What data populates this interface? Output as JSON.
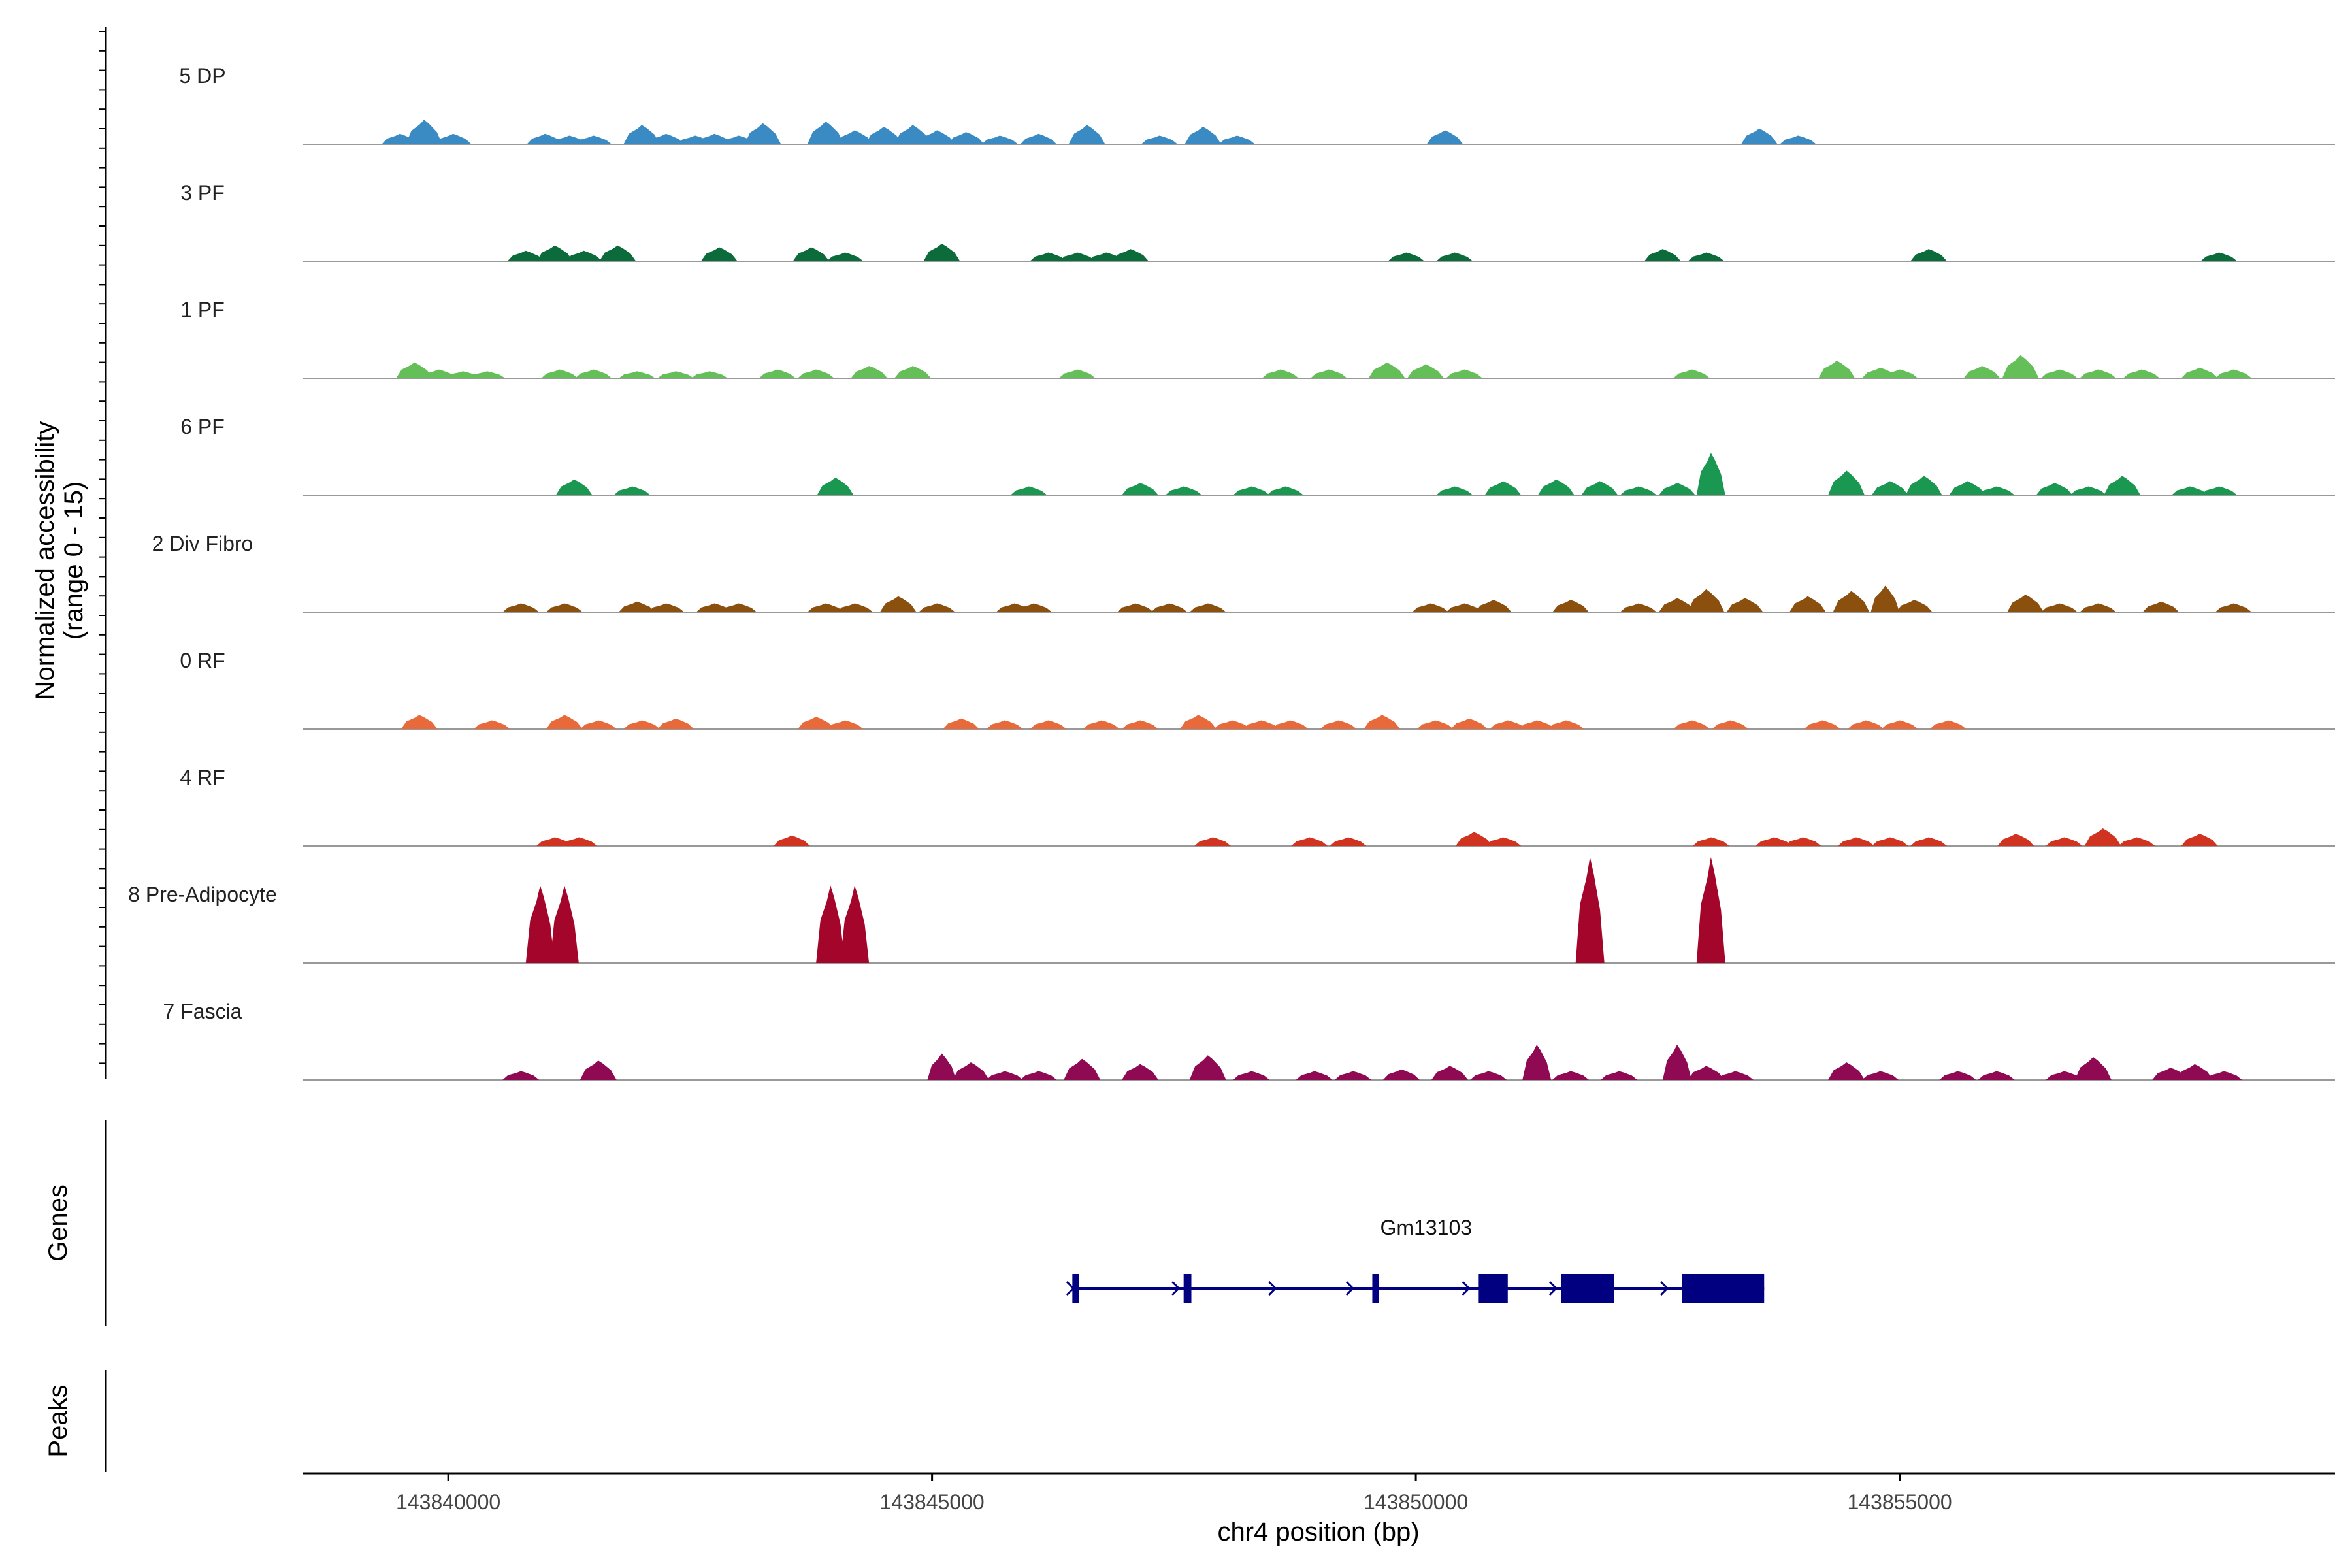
{
  "chart_data": {
    "type": "coverage",
    "xlabel": "chr4 position (bp)",
    "xlim": [
      143838500,
      143859500
    ],
    "x_ticks": [
      143840000,
      143845000,
      143850000,
      143855000
    ],
    "ylabel_line1": "Normalized accessibility",
    "ylabel_line2": "(range 0 - 15)",
    "ylim": [
      0,
      15
    ],
    "genes_label": "Genes",
    "peaks_label": "Peaks",
    "gene": {
      "name": "Gm13103",
      "color": "#000080",
      "start": 143846450,
      "end": 143853600,
      "strand": "+",
      "exons": [
        [
          143846450,
          143846520
        ],
        [
          143847600,
          143847680
        ],
        [
          143849550,
          143849620
        ],
        [
          143850650,
          143850950
        ],
        [
          143851500,
          143852050
        ],
        [
          143852750,
          143853600
        ]
      ],
      "arrows": [
        143846460,
        143847550,
        143848550,
        143849350,
        143850550,
        143851450,
        143852600
      ]
    },
    "tracks": [
      {
        "name": "5 DP",
        "color": "#3A8BC3",
        "peaks": [
          [
            143839500,
            6
          ],
          [
            143839750,
            14
          ],
          [
            143840050,
            6
          ],
          [
            143841000,
            6
          ],
          [
            143841250,
            5
          ],
          [
            143841500,
            5
          ],
          [
            143842000,
            11
          ],
          [
            143842250,
            6
          ],
          [
            143842550,
            5
          ],
          [
            143842750,
            6
          ],
          [
            143843000,
            5
          ],
          [
            143843250,
            12
          ],
          [
            143843900,
            13
          ],
          [
            143844200,
            8
          ],
          [
            143844500,
            10
          ],
          [
            143844800,
            11
          ],
          [
            143845050,
            8
          ],
          [
            143845350,
            7
          ],
          [
            143845700,
            5
          ],
          [
            143846100,
            6
          ],
          [
            143846600,
            11
          ],
          [
            143847350,
            5
          ],
          [
            143847800,
            10
          ],
          [
            143848150,
            5
          ],
          [
            143850300,
            8
          ],
          [
            143853550,
            9
          ],
          [
            143853950,
            5
          ]
        ]
      },
      {
        "name": "3 PF",
        "color": "#0B6B3A",
        "peaks": [
          [
            143840800,
            6
          ],
          [
            143841100,
            9
          ],
          [
            143841400,
            6
          ],
          [
            143841750,
            9
          ],
          [
            143842800,
            8
          ],
          [
            143843750,
            8
          ],
          [
            143844100,
            5
          ],
          [
            143845100,
            10
          ],
          [
            143846200,
            5
          ],
          [
            143846500,
            5
          ],
          [
            143846800,
            5
          ],
          [
            143847050,
            7
          ],
          [
            143849900,
            5
          ],
          [
            143850400,
            5
          ],
          [
            143852550,
            7
          ],
          [
            143853000,
            5
          ],
          [
            143855300,
            7
          ],
          [
            143858300,
            5
          ]
        ]
      },
      {
        "name": "1 PF",
        "color": "#64BF58",
        "peaks": [
          [
            143839650,
            9
          ],
          [
            143839900,
            5
          ],
          [
            143840150,
            4
          ],
          [
            143840400,
            4
          ],
          [
            143841150,
            5
          ],
          [
            143841500,
            5
          ],
          [
            143841950,
            4
          ],
          [
            143842350,
            4
          ],
          [
            143842700,
            4
          ],
          [
            143843400,
            5
          ],
          [
            143843800,
            5
          ],
          [
            143844350,
            7
          ],
          [
            143844800,
            7
          ],
          [
            143846500,
            5
          ],
          [
            143848600,
            5
          ],
          [
            143849100,
            5
          ],
          [
            143849700,
            9
          ],
          [
            143850100,
            8
          ],
          [
            143850500,
            5
          ],
          [
            143852850,
            5
          ],
          [
            143854350,
            10
          ],
          [
            143854800,
            6
          ],
          [
            143855000,
            5
          ],
          [
            143855850,
            7
          ],
          [
            143856250,
            13
          ],
          [
            143856650,
            5
          ],
          [
            143857050,
            5
          ],
          [
            143857500,
            5
          ],
          [
            143858100,
            6
          ],
          [
            143858450,
            5
          ]
        ]
      },
      {
        "name": "6 PF",
        "color": "#1A9750",
        "peaks": [
          [
            143841300,
            9
          ],
          [
            143841900,
            5
          ],
          [
            143844000,
            10
          ],
          [
            143846000,
            5
          ],
          [
            143847150,
            7
          ],
          [
            143847600,
            5
          ],
          [
            143848300,
            5
          ],
          [
            143848650,
            5
          ],
          [
            143850400,
            5
          ],
          [
            143850900,
            8
          ],
          [
            143851450,
            9
          ],
          [
            143851900,
            8
          ],
          [
            143852300,
            5
          ],
          [
            143852700,
            7
          ],
          [
            143853050,
            24
          ],
          [
            143854450,
            14
          ],
          [
            143854900,
            8
          ],
          [
            143855250,
            11
          ],
          [
            143855700,
            8
          ],
          [
            143856000,
            5
          ],
          [
            143856600,
            7
          ],
          [
            143856950,
            5
          ],
          [
            143857300,
            11
          ],
          [
            143858000,
            5
          ],
          [
            143858300,
            5
          ]
        ]
      },
      {
        "name": "2 Div Fibro",
        "color": "#8B4F0E",
        "peaks": [
          [
            143840750,
            5
          ],
          [
            143841200,
            5
          ],
          [
            143841950,
            6
          ],
          [
            143842250,
            5
          ],
          [
            143842750,
            5
          ],
          [
            143843000,
            5
          ],
          [
            143843900,
            5
          ],
          [
            143844200,
            5
          ],
          [
            143844650,
            9
          ],
          [
            143845050,
            5
          ],
          [
            143845850,
            5
          ],
          [
            143846050,
            5
          ],
          [
            143847100,
            5
          ],
          [
            143847450,
            5
          ],
          [
            143847850,
            5
          ],
          [
            143850150,
            5
          ],
          [
            143850500,
            5
          ],
          [
            143850800,
            7
          ],
          [
            143851600,
            7
          ],
          [
            143852300,
            5
          ],
          [
            143852700,
            8
          ],
          [
            143853000,
            13
          ],
          [
            143853400,
            8
          ],
          [
            143854050,
            9
          ],
          [
            143854500,
            12
          ],
          [
            143854850,
            15
          ],
          [
            143855150,
            7
          ],
          [
            143856300,
            10
          ],
          [
            143856650,
            5
          ],
          [
            143857050,
            5
          ],
          [
            143857700,
            6
          ],
          [
            143858450,
            5
          ]
        ]
      },
      {
        "name": "0 RF",
        "color": "#E8693A",
        "peaks": [
          [
            143839700,
            8
          ],
          [
            143840450,
            5
          ],
          [
            143841200,
            8
          ],
          [
            143841550,
            5
          ],
          [
            143842000,
            5
          ],
          [
            143842350,
            6
          ],
          [
            143843800,
            7
          ],
          [
            143844100,
            5
          ],
          [
            143845300,
            6
          ],
          [
            143845750,
            5
          ],
          [
            143846200,
            5
          ],
          [
            143846750,
            5
          ],
          [
            143847150,
            5
          ],
          [
            143847750,
            8
          ],
          [
            143848100,
            5
          ],
          [
            143848400,
            5
          ],
          [
            143848700,
            5
          ],
          [
            143849200,
            5
          ],
          [
            143849650,
            8
          ],
          [
            143850200,
            5
          ],
          [
            143850550,
            6
          ],
          [
            143850950,
            5
          ],
          [
            143851250,
            5
          ],
          [
            143851550,
            5
          ],
          [
            143852850,
            5
          ],
          [
            143853250,
            5
          ],
          [
            143854200,
            5
          ],
          [
            143854650,
            5
          ],
          [
            143855000,
            5
          ],
          [
            143855500,
            5
          ]
        ]
      },
      {
        "name": "4 RF",
        "color": "#D03421",
        "peaks": [
          [
            143841100,
            5
          ],
          [
            143841350,
            5
          ],
          [
            143843550,
            6
          ],
          [
            143847900,
            5
          ],
          [
            143848900,
            5
          ],
          [
            143849300,
            5
          ],
          [
            143850600,
            8
          ],
          [
            143850900,
            5
          ],
          [
            143853050,
            5
          ],
          [
            143853700,
            5
          ],
          [
            143854000,
            5
          ],
          [
            143854550,
            5
          ],
          [
            143854900,
            5
          ],
          [
            143855300,
            5
          ],
          [
            143856200,
            7
          ],
          [
            143856700,
            5
          ],
          [
            143857100,
            10
          ],
          [
            143857450,
            5
          ],
          [
            143858100,
            7
          ]
        ]
      },
      {
        "name": "8 Pre-Adipocyte",
        "color": "#A3062A",
        "peaks": [
          [
            143840950,
            44
          ],
          [
            143841200,
            44
          ],
          [
            143843950,
            44
          ],
          [
            143844200,
            44
          ],
          [
            143851800,
            60
          ],
          [
            143853050,
            60
          ]
        ]
      },
      {
        "name": "7 Fascia",
        "color": "#8F0A52",
        "peaks": [
          [
            143840750,
            5
          ],
          [
            143841550,
            11
          ],
          [
            143845100,
            15
          ],
          [
            143845400,
            10
          ],
          [
            143845750,
            5
          ],
          [
            143846100,
            5
          ],
          [
            143846550,
            12
          ],
          [
            143847150,
            9
          ],
          [
            143847850,
            14
          ],
          [
            143848300,
            5
          ],
          [
            143848950,
            5
          ],
          [
            143849350,
            5
          ],
          [
            143849850,
            6
          ],
          [
            143850350,
            8
          ],
          [
            143850750,
            5
          ],
          [
            143851250,
            20
          ],
          [
            143851600,
            5
          ],
          [
            143852100,
            5
          ],
          [
            143852700,
            20
          ],
          [
            143853000,
            8
          ],
          [
            143853300,
            5
          ],
          [
            143854450,
            10
          ],
          [
            143854800,
            5
          ],
          [
            143855600,
            5
          ],
          [
            143856000,
            5
          ],
          [
            143856700,
            5
          ],
          [
            143857000,
            13
          ],
          [
            143857800,
            7
          ],
          [
            143858050,
            9
          ],
          [
            143858350,
            5
          ]
        ]
      }
    ]
  }
}
